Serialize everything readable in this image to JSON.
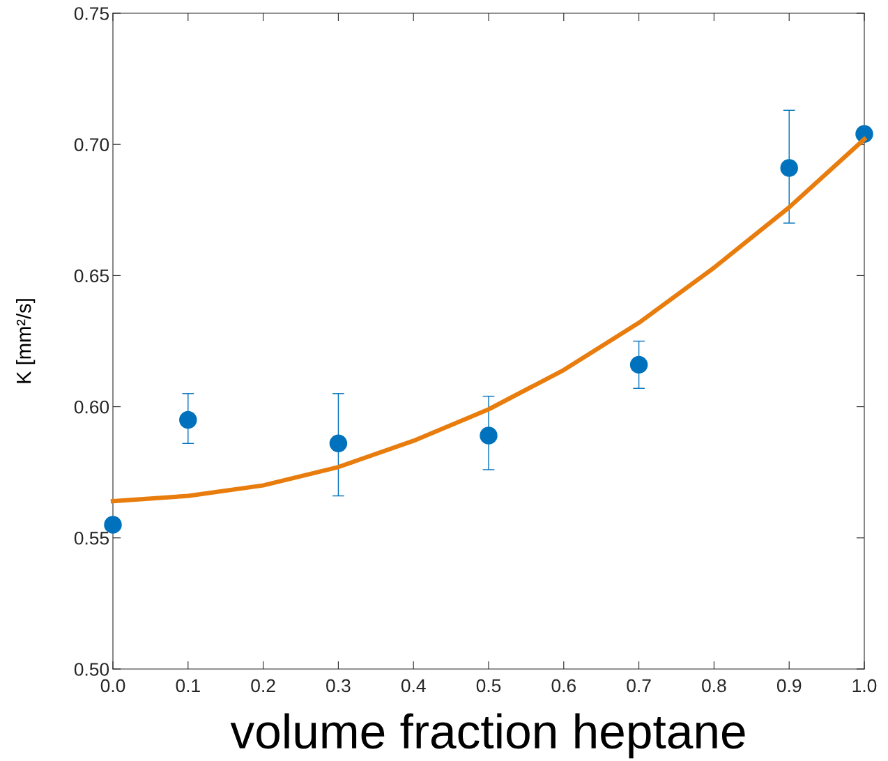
{
  "chart_data": {
    "type": "scatter",
    "xlabel": "volume fraction heptane",
    "ylabel": "K [mm²/s]",
    "xlim": [
      0,
      1
    ],
    "ylim": [
      0.5,
      0.75
    ],
    "xticks": [
      {
        "value": 0,
        "label": "0.0"
      },
      0.1,
      0.2,
      0.3,
      0.4,
      0.5,
      0.6,
      0.7,
      0.8,
      0.9,
      {
        "value": 1,
        "label": "1.0"
      }
    ],
    "yticks": [
      {
        "value": 0.5,
        "label": "0.50"
      },
      0.55,
      {
        "value": 0.6,
        "label": "0.60"
      },
      0.65,
      {
        "value": 0.7,
        "label": "0.70"
      },
      0.75
    ],
    "grid": false,
    "legend": false,
    "series": [
      {
        "color": "#0072bd",
        "marker": "circle",
        "x": [
          0,
          0.1,
          0.3,
          0.5,
          0.7,
          0.9,
          1.0
        ],
        "values": [
          0.555,
          0.595,
          0.586,
          0.589,
          0.616,
          0.691,
          0.704
        ],
        "errors": [
          null,
          [
            0.586,
            0.605
          ],
          [
            0.566,
            0.605
          ],
          [
            0.576,
            0.604
          ],
          [
            0.607,
            0.625
          ],
          [
            0.67,
            0.713
          ],
          null
        ]
      },
      {
        "type": "line",
        "color": "#e87d0e",
        "marker": "none",
        "line_style": "solid",
        "x": [
          0,
          0.1,
          0.2,
          0.3,
          0.4,
          0.5,
          0.6,
          0.7,
          0.8,
          0.9,
          1.0
        ],
        "values": [
          0.564,
          0.566,
          0.57,
          0.577,
          0.587,
          0.599,
          0.614,
          0.632,
          0.653,
          0.676,
          0.702
        ]
      }
    ]
  }
}
